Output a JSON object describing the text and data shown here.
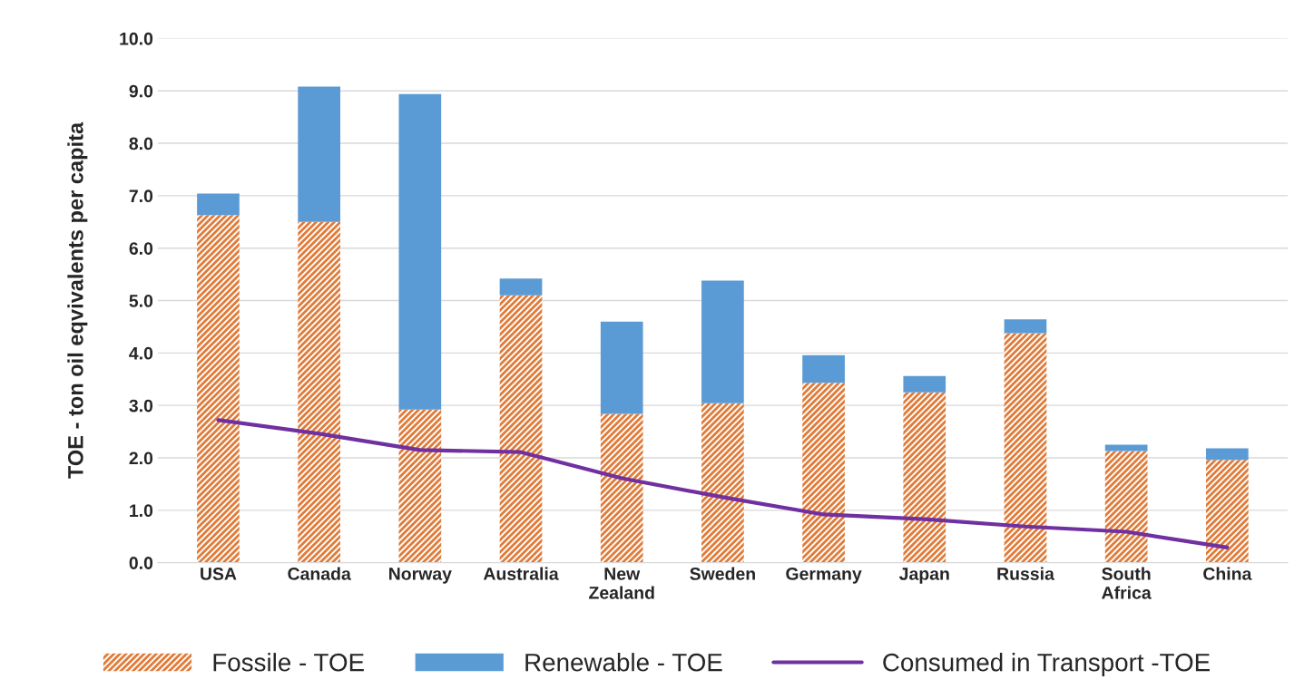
{
  "chart_data": {
    "type": "bar",
    "stacked": true,
    "ylabel": "TOE - ton oil eqvivalents per capita",
    "categories": [
      "USA",
      "Canada",
      "Norway",
      "Australia",
      "New Zealand",
      "Sweden",
      "Germany",
      "Japan",
      "Russia",
      "South Africa",
      "China"
    ],
    "series": [
      {
        "name": "Fossile - TOE",
        "color": "#e07b39",
        "values": [
          6.63,
          6.5,
          2.92,
          5.1,
          2.84,
          3.04,
          3.43,
          3.25,
          4.38,
          2.13,
          1.96
        ]
      },
      {
        "name": "Renewable - TOE",
        "color": "#5b9bd5",
        "values": [
          0.41,
          2.58,
          6.02,
          0.32,
          1.76,
          2.34,
          0.53,
          0.31,
          0.26,
          0.12,
          0.22
        ]
      },
      {
        "name": "Consumed in Transport -TOE",
        "type": "line",
        "color": "#7030a0",
        "values": [
          2.72,
          2.46,
          2.15,
          2.11,
          1.61,
          1.25,
          0.92,
          0.83,
          0.69,
          0.59,
          0.29
        ]
      }
    ],
    "ylim": [
      0,
      10
    ],
    "yticks": [
      {
        "value": 0,
        "label": "0.0"
      },
      {
        "value": 1,
        "label": "1.0"
      },
      {
        "value": 2,
        "label": "2.0"
      },
      {
        "value": 3,
        "label": "3.0"
      },
      {
        "value": 4,
        "label": "4.0"
      },
      {
        "value": 5,
        "label": "5.0"
      },
      {
        "value": 6,
        "label": "6.0"
      },
      {
        "value": 7,
        "label": "7.0"
      },
      {
        "value": 8,
        "label": "8.0"
      },
      {
        "value": 9,
        "label": "9.0"
      },
      {
        "value": 10,
        "label": "10.0"
      }
    ],
    "grid": "y",
    "legend": "bottom",
    "marker": "none",
    "line_style": "solid"
  }
}
